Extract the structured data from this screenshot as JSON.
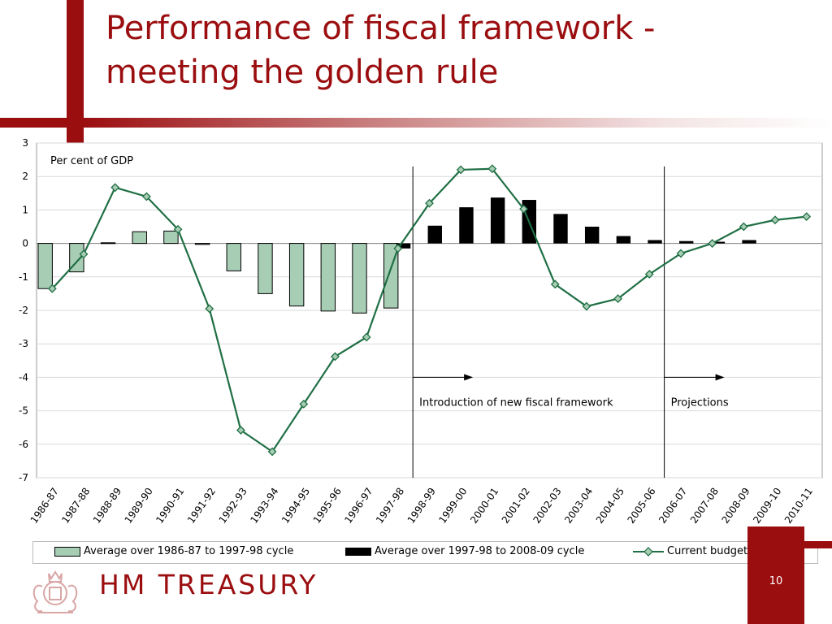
{
  "slide": {
    "title_line1": "Performance of fiscal framework -",
    "title_line2": "meeting the golden rule",
    "brand": "HM TREASURY",
    "page_number": "10",
    "colors": {
      "accent": "#9b0e10",
      "line": "#1f6f44",
      "bar_green": "#a8cdb5",
      "bar_black": "#000000"
    },
    "logo_icon": "royal-crest-icon"
  },
  "chart_data": {
    "type": "bar",
    "ylabel": "Per cent of GDP",
    "ylim": [
      -7,
      3
    ],
    "yticks": [
      3,
      2,
      1,
      0,
      -1,
      -2,
      -3,
      -4,
      -5,
      -6,
      -7
    ],
    "categories": [
      "1986-87",
      "1987-88",
      "1988-89",
      "1989-90",
      "1990-91",
      "1991-92",
      "1992-93",
      "1993-94",
      "1994-95",
      "1995-96",
      "1996-97",
      "1997-98",
      "1998-99",
      "1999-00",
      "2000-01",
      "2001-02",
      "2002-03",
      "2003-04",
      "2004-05",
      "2005-06",
      "2006-07",
      "2007-08",
      "2008-09",
      "2009-10",
      "2010-11"
    ],
    "series": [
      {
        "name": "Average over 1986-87 to 1997-98 cycle",
        "kind": "bar",
        "color": "#a8cdb5",
        "values": [
          -1.35,
          -0.85,
          0.02,
          0.35,
          0.37,
          -0.03,
          -0.82,
          -1.5,
          -1.87,
          -2.02,
          -2.08,
          -1.93,
          null,
          null,
          null,
          null,
          null,
          null,
          null,
          null,
          null,
          null,
          null,
          null,
          null
        ]
      },
      {
        "name": "Average over 1997-98 to 2008-09 cycle",
        "kind": "bar",
        "color": "#000000",
        "values": [
          null,
          null,
          null,
          null,
          null,
          null,
          null,
          null,
          null,
          null,
          null,
          -0.15,
          0.53,
          1.08,
          1.37,
          1.3,
          0.88,
          0.5,
          0.22,
          0.1,
          0.07,
          0.05,
          0.1,
          null,
          null
        ]
      },
      {
        "name": "Current budget surplus",
        "kind": "line",
        "color": "#1f6f44",
        "values": [
          -1.35,
          -0.32,
          1.67,
          1.4,
          0.42,
          -1.95,
          -5.58,
          -6.22,
          -4.8,
          -3.38,
          -2.8,
          -0.15,
          1.2,
          2.2,
          2.23,
          1.03,
          -1.22,
          -1.88,
          -1.65,
          -0.92,
          -0.3,
          0.0,
          0.5,
          0.7,
          0.8
        ]
      }
    ],
    "annotations": [
      {
        "text": "Introduction of new fiscal framework",
        "at_category": "1997-98"
      },
      {
        "text": "Projections",
        "at_category": "2005-06"
      }
    ],
    "legend_position": "bottom"
  }
}
